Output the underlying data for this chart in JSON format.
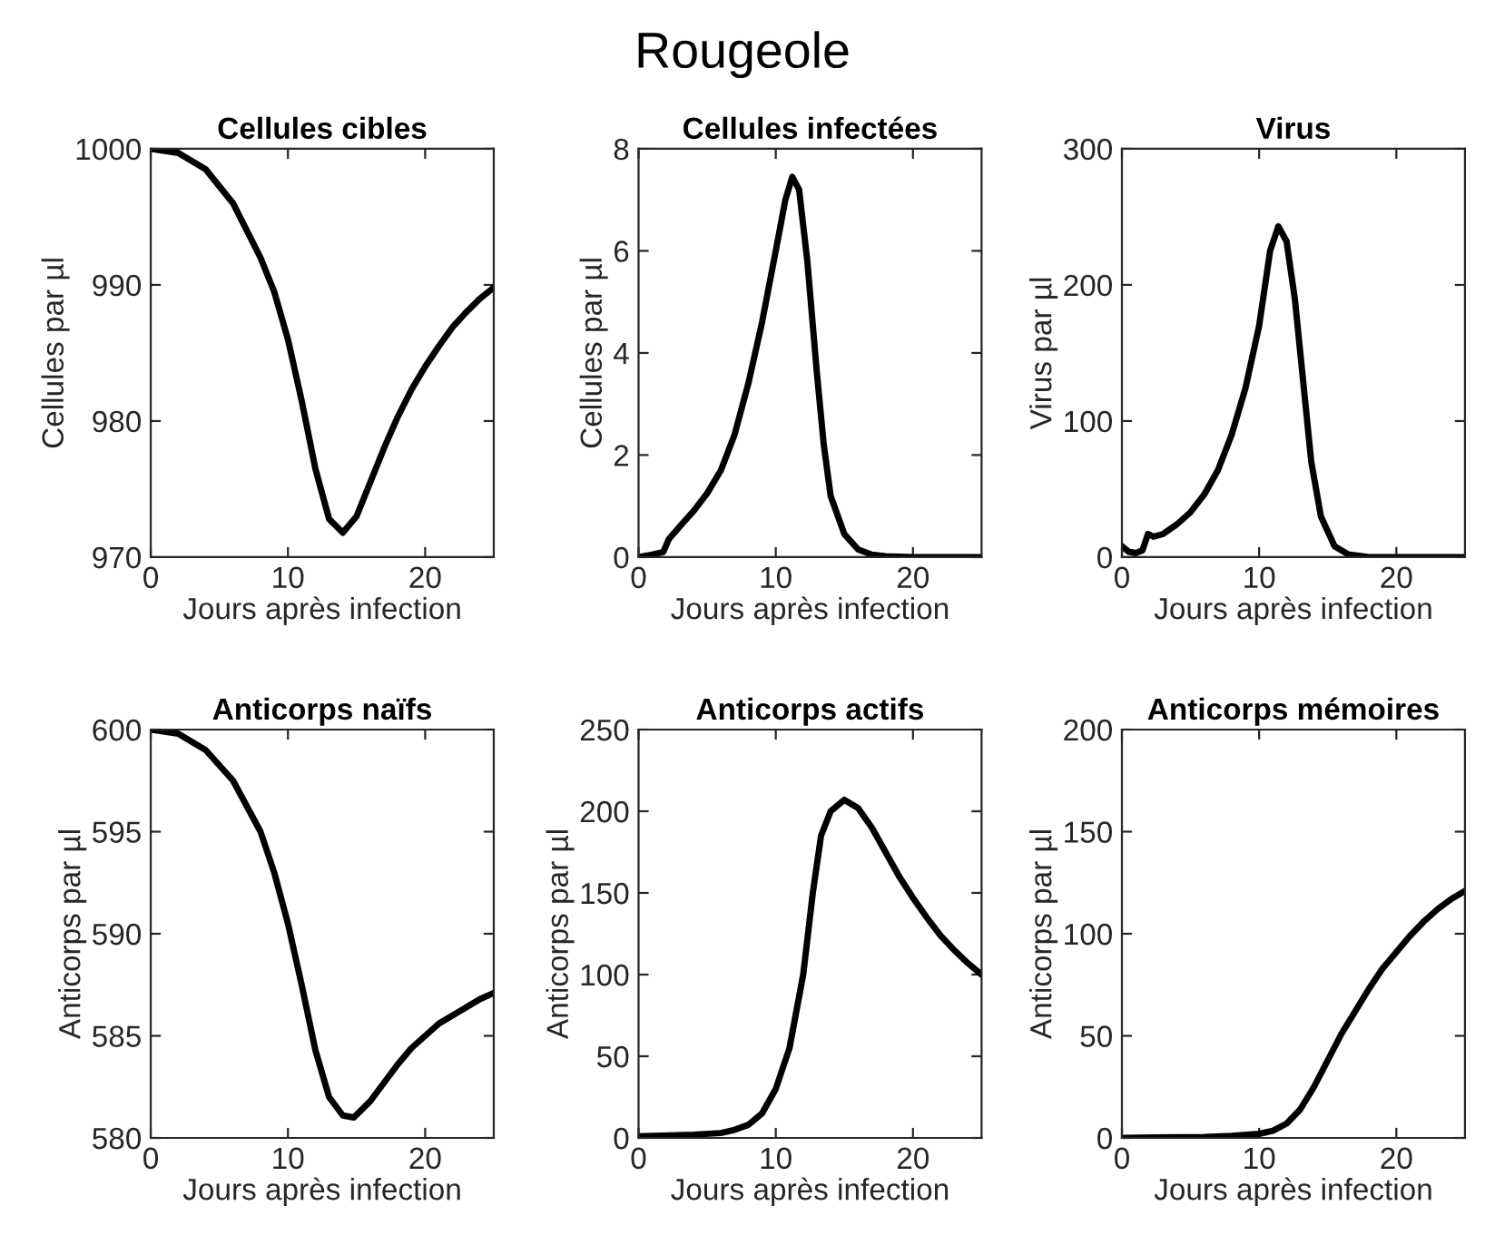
{
  "chart_data": [
    {
      "type": "line",
      "title": "Cellules cibles",
      "xlabel": "Jours après infection",
      "ylabel": "Cellules par µl",
      "annotations": [
        "Rougeole"
      ],
      "xlim": [
        0,
        25
      ],
      "xticks": [
        0,
        10,
        20
      ],
      "ylim": [
        970,
        1000
      ],
      "yticks": [
        970,
        980,
        990,
        1000
      ],
      "grid": false,
      "legend": false,
      "marker": "none",
      "line_style": "solid",
      "series": [
        {
          "color": "#000000",
          "x": [
            0,
            2,
            4,
            6,
            8,
            9,
            10,
            11,
            12,
            13,
            14,
            15,
            16,
            17,
            18,
            19,
            20,
            21,
            22,
            23,
            24,
            25
          ],
          "values": [
            1000,
            999.7,
            998.5,
            996,
            992,
            989.5,
            986,
            981.5,
            976.5,
            972.8,
            971.8,
            973,
            975.5,
            978,
            980.3,
            982.3,
            984,
            985.5,
            986.9,
            988,
            989,
            989.8
          ]
        }
      ]
    },
    {
      "type": "line",
      "title": "Cellules infectées",
      "xlabel": "Jours après infection",
      "ylabel": "Cellules par µl",
      "xlim": [
        0,
        25
      ],
      "xticks": [
        0,
        10,
        20
      ],
      "ylim": [
        0,
        8
      ],
      "yticks": [
        0,
        2,
        4,
        6,
        8
      ],
      "grid": false,
      "legend": false,
      "marker": "none",
      "line_style": "solid",
      "series": [
        {
          "color": "#000000",
          "x": [
            0,
            1,
            1.8,
            2.2,
            3,
            4,
            5,
            6,
            7,
            8,
            9,
            10,
            10.7,
            11.2,
            11.7,
            12.3,
            13,
            13.5,
            14,
            15,
            16,
            17,
            18,
            20,
            25
          ],
          "values": [
            0,
            0.05,
            0.1,
            0.35,
            0.6,
            0.9,
            1.25,
            1.7,
            2.4,
            3.4,
            4.6,
            6.0,
            7.0,
            7.45,
            7.2,
            5.8,
            3.6,
            2.2,
            1.2,
            0.45,
            0.15,
            0.05,
            0.02,
            0,
            0
          ]
        }
      ]
    },
    {
      "type": "line",
      "title": "Virus",
      "xlabel": "Jours après infection",
      "ylabel": "Virus par µl",
      "xlim": [
        0,
        25
      ],
      "xticks": [
        0,
        10,
        20
      ],
      "ylim": [
        0,
        300
      ],
      "yticks": [
        0,
        100,
        200,
        300
      ],
      "grid": false,
      "legend": false,
      "marker": "none",
      "line_style": "solid",
      "series": [
        {
          "color": "#000000",
          "x": [
            0,
            0.5,
            1,
            1.5,
            1.9,
            2.3,
            3,
            4,
            5,
            6,
            7,
            8,
            9,
            10,
            10.8,
            11.4,
            12,
            12.6,
            13.2,
            13.8,
            14.5,
            15.5,
            16.5,
            18,
            25
          ],
          "values": [
            8,
            4,
            3,
            5,
            17,
            15,
            17,
            24,
            33,
            46,
            64,
            90,
            124,
            170,
            225,
            243,
            232,
            190,
            130,
            70,
            30,
            8,
            2,
            0,
            0
          ]
        }
      ]
    },
    {
      "type": "line",
      "title": "Anticorps naïfs",
      "xlabel": "Jours après infection",
      "ylabel": "Anticorps par µl",
      "xlim": [
        0,
        25
      ],
      "xticks": [
        0,
        10,
        20
      ],
      "ylim": [
        580,
        600
      ],
      "yticks": [
        580,
        585,
        590,
        595,
        600
      ],
      "grid": false,
      "legend": false,
      "marker": "none",
      "line_style": "solid",
      "series": [
        {
          "color": "#000000",
          "x": [
            0,
            2,
            4,
            6,
            8,
            9,
            10,
            11,
            12,
            13,
            14,
            14.8,
            16,
            17,
            18,
            19,
            20,
            21,
            22,
            23,
            24,
            25
          ],
          "values": [
            600,
            599.8,
            599,
            597.5,
            595,
            593,
            590.5,
            587.5,
            584.3,
            582,
            581.1,
            581,
            581.8,
            582.7,
            583.6,
            584.4,
            585,
            585.6,
            586,
            586.4,
            586.8,
            587.1
          ]
        }
      ]
    },
    {
      "type": "line",
      "title": "Anticorps actifs",
      "xlabel": "Jours après infection",
      "ylabel": "Anticorps par µl",
      "xlim": [
        0,
        25
      ],
      "xticks": [
        0,
        10,
        20
      ],
      "ylim": [
        0,
        250
      ],
      "yticks": [
        0,
        50,
        100,
        150,
        200,
        250
      ],
      "grid": false,
      "legend": false,
      "marker": "none",
      "line_style": "solid",
      "series": [
        {
          "color": "#000000",
          "x": [
            0,
            4,
            6,
            7,
            8,
            9,
            10,
            11,
            12,
            12.7,
            13.3,
            14,
            15,
            16,
            17,
            18,
            19,
            20,
            21,
            22,
            23,
            24,
            25
          ],
          "values": [
            1,
            2,
            3,
            5,
            8,
            15,
            30,
            55,
            100,
            150,
            185,
            200,
            207,
            202,
            190,
            175,
            160,
            147,
            135,
            124,
            115,
            107,
            100
          ]
        }
      ]
    },
    {
      "type": "line",
      "title": "Anticorps mémoires",
      "xlabel": "Jours après infection",
      "ylabel": "Anticorps par µl",
      "xlim": [
        0,
        25
      ],
      "xticks": [
        0,
        10,
        20
      ],
      "ylim": [
        0,
        200
      ],
      "yticks": [
        0,
        50,
        100,
        150,
        200
      ],
      "grid": false,
      "legend": false,
      "marker": "none",
      "line_style": "solid",
      "series": [
        {
          "color": "#000000",
          "x": [
            0,
            6,
            8,
            10,
            11,
            12,
            13,
            14,
            15,
            16,
            17,
            18,
            19,
            20,
            21,
            22,
            23,
            24,
            25
          ],
          "values": [
            0,
            0.5,
            1,
            2,
            3.5,
            7,
            14,
            25,
            38,
            51,
            62,
            73,
            83,
            91,
            99,
            106,
            112,
            117,
            121
          ]
        }
      ]
    }
  ]
}
